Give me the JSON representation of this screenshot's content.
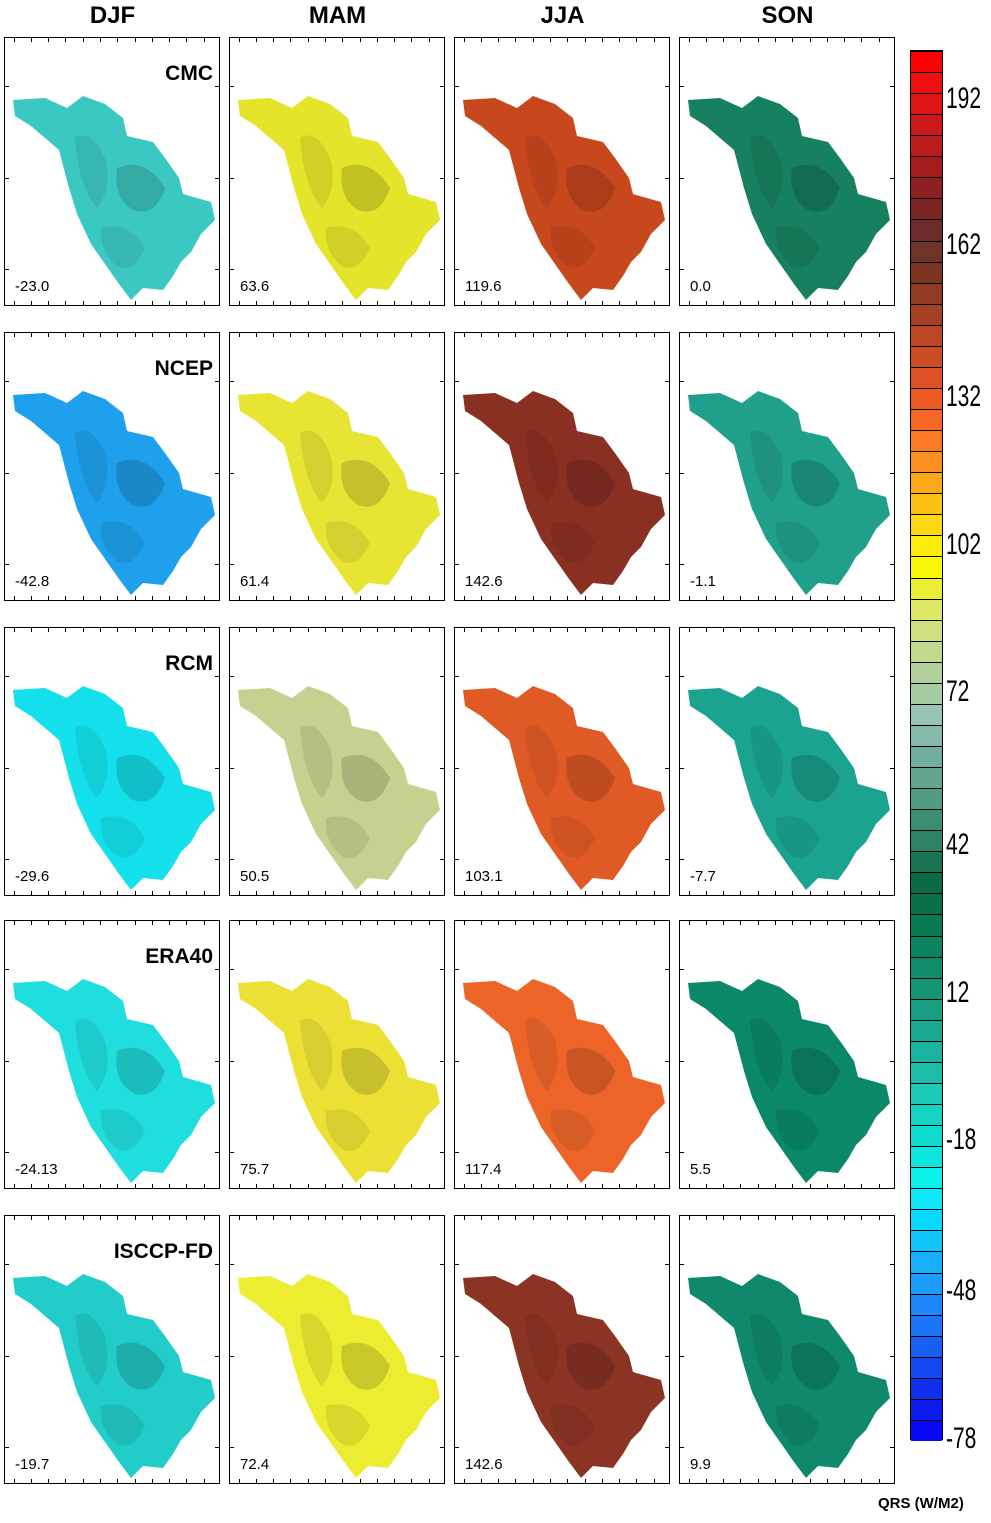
{
  "seasons": [
    "DJF",
    "MAM",
    "JJA",
    "SON"
  ],
  "rows": [
    {
      "dataset": "CMC",
      "values": [
        "-23.0",
        "63.6",
        "119.6",
        "0.0"
      ],
      "colors": [
        "#3cc8c2",
        "#e4e42a",
        "#c8481e",
        "#168060"
      ]
    },
    {
      "dataset": "NCEP",
      "values": [
        "-42.8",
        "61.4",
        "142.6",
        "-1.1"
      ],
      "colors": [
        "#1ea0ec",
        "#e8e434",
        "#8a3022",
        "#20a08a"
      ]
    },
    {
      "dataset": "RCM",
      "values": [
        "-29.6",
        "50.5",
        "103.1",
        "-7.7"
      ],
      "colors": [
        "#14e0ec",
        "#c8d090",
        "#e05a26",
        "#1aa490"
      ]
    },
    {
      "dataset": "ERA40",
      "values": [
        "-24.13",
        "75.7",
        "117.4",
        "5.5"
      ],
      "colors": [
        "#20dede",
        "#ece034",
        "#ec6428",
        "#0a8868"
      ]
    },
    {
      "dataset": "ISCCP-FD",
      "values": [
        "-19.7",
        "72.4",
        "142.6",
        "9.9"
      ],
      "colors": [
        "#22ccc8",
        "#ecec30",
        "#8c3424",
        "#10886c"
      ]
    }
  ],
  "colorbar": {
    "ticks": [
      "192",
      "162",
      "132",
      "102",
      "72",
      "42",
      "12",
      "-18",
      "-48",
      "-78"
    ],
    "colors": [
      "#ff0000",
      "#ee1010",
      "#dd1414",
      "#cc1818",
      "#b81c1c",
      "#a41c1c",
      "#8e2020",
      "#7c2424",
      "#6c2c2c",
      "#6e3428",
      "#7c3420",
      "#923a22",
      "#a64024",
      "#ba4624",
      "#cc4c24",
      "#dc5224",
      "#ec5a22",
      "#f86626",
      "#fc7a22",
      "#fc9020",
      "#fca818",
      "#fcc010",
      "#fcd810",
      "#fcec08",
      "#f8f808",
      "#eaee36",
      "#dce866",
      "#d0e07e",
      "#c2d88c",
      "#b4d09a",
      "#a6cca4",
      "#98c4b4",
      "#86b8ac",
      "#72aea0",
      "#62a692",
      "#529c82",
      "#3c8e72",
      "#2c8262",
      "#187452",
      "#0c6a44",
      "#0a7048",
      "#0a7a52",
      "#0a845e",
      "#108c6a",
      "#149676",
      "#189e82",
      "#1aa890",
      "#1cb49e",
      "#1cbeaa",
      "#1ccab6",
      "#14d4c4",
      "#0cdcd0",
      "#0ce6de",
      "#0cf0ec",
      "#0ce8f8",
      "#08d8fc",
      "#10c4fc",
      "#18b0fc",
      "#1c9cfc",
      "#1c88fc",
      "#1c74f8",
      "#1860f4",
      "#1448f0",
      "#1030ee",
      "#0c1cf0",
      "#0808f4"
    ]
  },
  "unit_label": "QRS (W/M2)"
}
